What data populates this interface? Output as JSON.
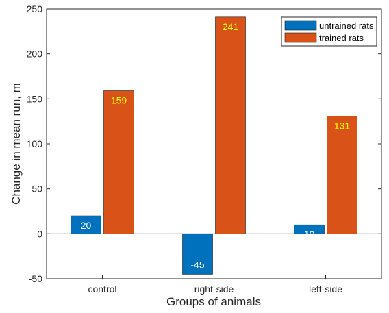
{
  "chart_data": {
    "type": "bar",
    "title": "",
    "xlabel": "Groups of animals",
    "ylabel": "Change in mean run, m",
    "categories": [
      "control",
      "right-side",
      "left-side"
    ],
    "ylim": [
      -50,
      250
    ],
    "yticks": [
      -50,
      0,
      50,
      100,
      150,
      200,
      250
    ],
    "grid": false,
    "legend_position": "top-right",
    "series": [
      {
        "name": "untrained rats",
        "values": [
          20,
          -45,
          10
        ],
        "labels": [
          "20",
          "-45",
          "10"
        ],
        "color": "#0072bd",
        "label_color": "#ffffff"
      },
      {
        "name": "trained rats",
        "values": [
          159,
          241,
          131
        ],
        "labels": [
          "159",
          "241",
          "131"
        ],
        "color": "#d95319",
        "label_color": "#ffff00"
      }
    ]
  }
}
